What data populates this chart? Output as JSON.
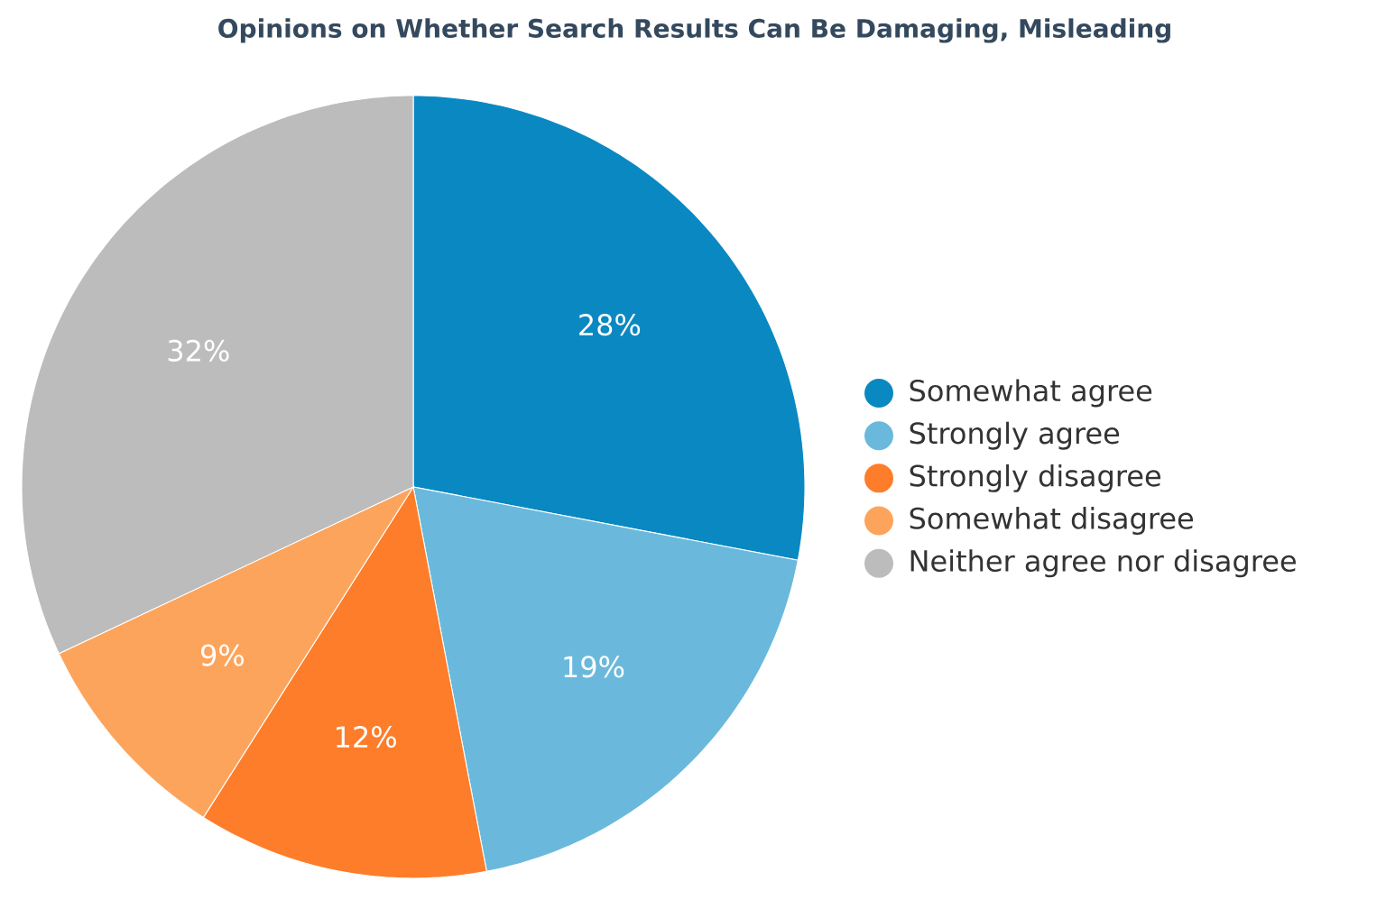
{
  "chart_data": {
    "type": "pie",
    "title": "Opinions on Whether Search Results Can Be Damaging, Misleading",
    "categories": [
      "Somewhat agree",
      "Strongly agree",
      "Strongly disagree",
      "Somewhat disagree",
      "Neither agree nor disagree"
    ],
    "values": [
      28,
      19,
      12,
      9,
      32
    ],
    "colors": [
      "#0a88c2",
      "#6ab9dc",
      "#fd7d2a",
      "#fda45c",
      "#bcbcbc"
    ],
    "value_labels": [
      "28%",
      "19%",
      "12%",
      "9%",
      "32%"
    ],
    "legend": "right"
  }
}
